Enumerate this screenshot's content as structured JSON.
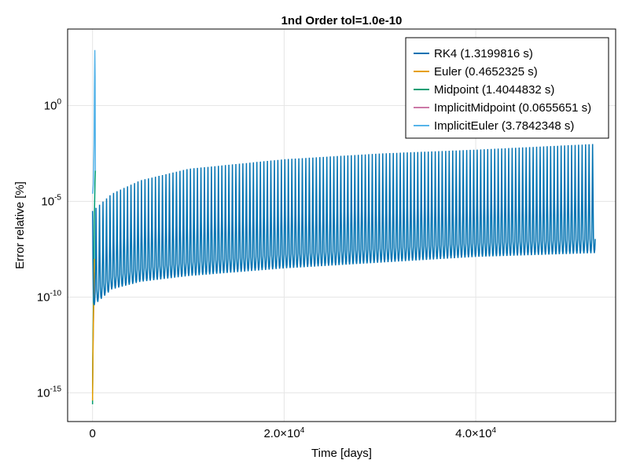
{
  "chart_data": {
    "type": "line",
    "title": "1nd Order tol=1.0e-10",
    "xlabel": "Time [days]",
    "ylabel": "Error relative [%]",
    "xlim": [
      -2600,
      54600
    ],
    "ylim_log10": [
      -16.5,
      4.0
    ],
    "yscale": "log10",
    "grid": true,
    "legend_position": "top-right",
    "x_ticks": [
      {
        "value": 0,
        "mantissa": "0",
        "exp": ""
      },
      {
        "value": 20000,
        "mantissa": "2.0×10",
        "exp": "4"
      },
      {
        "value": 40000,
        "mantissa": "4.0×10",
        "exp": "4"
      }
    ],
    "y_ticks": [
      {
        "log10": 0,
        "base": "10",
        "exp": "0"
      },
      {
        "log10": -5,
        "base": "10",
        "exp": "-5"
      },
      {
        "log10": -10,
        "base": "10",
        "exp": "-10"
      },
      {
        "log10": -15,
        "base": "10",
        "exp": "-15"
      }
    ],
    "series": [
      {
        "name": "RK4 (1.3199816 s)",
        "color": "#0072b2",
        "envelope": {
          "x_start": 0,
          "x_end": 52500,
          "period_days": 365,
          "peak_log10": [
            [
              0,
              -5.5
            ],
            [
              2000,
              -4.6
            ],
            [
              5000,
              -3.9
            ],
            [
              10000,
              -3.3
            ],
            [
              20000,
              -2.8
            ],
            [
              30000,
              -2.5
            ],
            [
              40000,
              -2.3
            ],
            [
              52500,
              -2.0
            ]
          ],
          "trough_log10": [
            [
              0,
              -10.5
            ],
            [
              2000,
              -9.6
            ],
            [
              5000,
              -9.2
            ],
            [
              10000,
              -8.9
            ],
            [
              20000,
              -8.5
            ],
            [
              30000,
              -8.2
            ],
            [
              40000,
              -7.9
            ],
            [
              52500,
              -7.7
            ]
          ]
        }
      },
      {
        "name": "Euler (0.4652325 s)",
        "color": "#e69f00",
        "points": [
          [
            0,
            -15.4
          ],
          [
            40,
            -13.0
          ],
          [
            80,
            -11.5
          ],
          [
            120,
            -10.5
          ],
          [
            160,
            -9.0
          ],
          [
            200,
            -8.0
          ]
        ]
      },
      {
        "name": "Midpoint (1.4044832 s)",
        "color": "#009e73",
        "points": [
          [
            0,
            -15.6
          ],
          [
            30,
            -13.2
          ],
          [
            60,
            -11.8
          ],
          [
            100,
            -10.2
          ],
          [
            140,
            -9.1
          ],
          [
            180,
            -6.0
          ],
          [
            220,
            -5.0
          ],
          [
            260,
            -4.0
          ],
          [
            300,
            -3.4
          ]
        ]
      },
      {
        "name": "ImplicitMidpoint (0.0655651 s)",
        "color": "#cc79a7",
        "points": [
          [
            0,
            -15.0
          ],
          [
            60,
            -12.5
          ],
          [
            120,
            -10.8
          ],
          [
            180,
            -9.6
          ],
          [
            240,
            -8.7
          ]
        ]
      },
      {
        "name": "ImplicitEuler (3.7842348 s)",
        "color": "#56b4e9",
        "points": [
          [
            0,
            -4.6
          ],
          [
            40,
            -4.4
          ],
          [
            80,
            -4.1
          ],
          [
            120,
            -3.3
          ],
          [
            160,
            -2.0
          ],
          [
            200,
            1.0
          ],
          [
            240,
            2.9
          ],
          [
            270,
            1.5
          ],
          [
            300,
            -3.5
          ]
        ]
      }
    ]
  }
}
